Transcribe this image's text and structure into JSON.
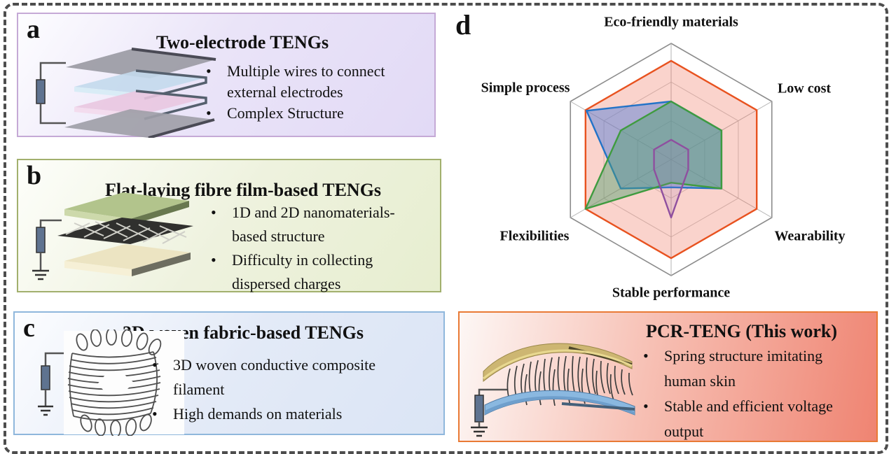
{
  "panels": {
    "a": {
      "letter": "a",
      "title": "Two-electrode TENGs",
      "bullets": [
        "Multiple wires to connect external electrodes",
        "Complex Structure"
      ],
      "border_color": "#c5a9d6",
      "icon": "stacked-electrode-layers-icon"
    },
    "b": {
      "letter": "b",
      "title": "Flat-laying fibre film-based TENGs",
      "bullets": [
        "1D and 2D nanomaterials-based structure",
        "Difficulty in collecting dispersed charges"
      ],
      "border_color": "#a2b06d",
      "icon": "fibre-film-stack-icon"
    },
    "c": {
      "letter": "c",
      "title": "3D woven fabric-based TENGs",
      "bullets": [
        "3D woven conductive composite filament",
        "High demands on materials"
      ],
      "border_color": "#8fb7dc",
      "icon": "woven-fabric-cylinder-icon"
    },
    "d": {
      "letter": "d"
    },
    "pcr": {
      "title": "PCR-TENG (This work)",
      "bullets": [
        "Spring structure imitating human skin",
        "Stable and efficient voltage output"
      ],
      "border_color": "#e97a35",
      "icon": "spring-skin-teng-icon"
    }
  },
  "chart_data": {
    "type": "radar",
    "categories": [
      "Eco-friendly materials",
      "Low cost",
      "Wearability",
      "Stable performance",
      "Flexibilities",
      "Simple process"
    ],
    "rmax": 1,
    "grid_rings": [
      0.333,
      0.667,
      1
    ],
    "grid_color": "#8c8c8c",
    "legend": "none",
    "series": [
      {
        "name": "red-this-work",
        "color": "#e8521f",
        "fill": "rgba(238,110,85,0.30)",
        "values": [
          0.85,
          0.85,
          0.85,
          0.85,
          0.85,
          0.85
        ]
      },
      {
        "name": "blue",
        "color": "#2273c8",
        "fill": "rgba(90,130,215,0.50)",
        "values": [
          0.5,
          0.5,
          0.5,
          0.24,
          0.5,
          0.84
        ]
      },
      {
        "name": "green",
        "color": "#3f9b3f",
        "fill": "rgba(80,160,110,0.45)",
        "values": [
          0.5,
          0.5,
          0.5,
          0.2,
          0.85,
          0.5
        ]
      },
      {
        "name": "purple",
        "color": "#8f4f9f",
        "fill": "rgba(160,120,185,0.18)",
        "values": [
          0.17,
          0.17,
          0.17,
          0.5,
          0.17,
          0.17
        ]
      }
    ]
  }
}
